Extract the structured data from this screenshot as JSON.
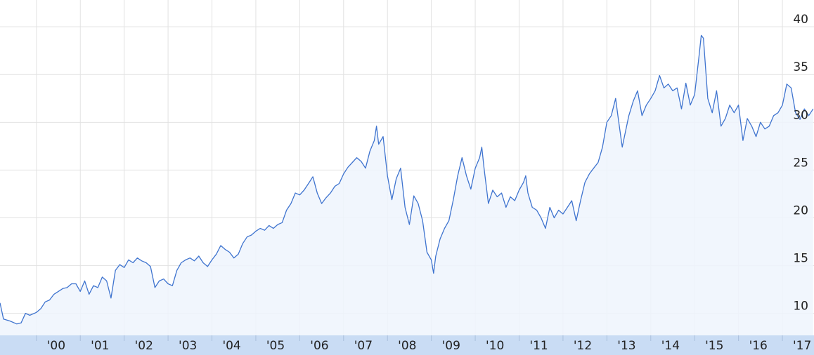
{
  "chart_data": {
    "type": "area",
    "color": "#3f74cf",
    "area_color": "#eef5fd",
    "grid": true,
    "xlim": [
      1999.17,
      2017.72
    ],
    "ylim": [
      7.7,
      42.8
    ],
    "yticks": [
      10,
      15,
      20,
      25,
      30,
      35,
      40
    ],
    "xticks": [
      {
        "value": 2000,
        "label": "'00"
      },
      {
        "value": 2001,
        "label": "'01"
      },
      {
        "value": 2002,
        "label": "'02"
      },
      {
        "value": 2003,
        "label": "'03"
      },
      {
        "value": 2004,
        "label": "'04"
      },
      {
        "value": 2005,
        "label": "'05"
      },
      {
        "value": 2006,
        "label": "'06"
      },
      {
        "value": 2007,
        "label": "'07"
      },
      {
        "value": 2008,
        "label": "'08"
      },
      {
        "value": 2009,
        "label": "'09"
      },
      {
        "value": 2010,
        "label": "'10"
      },
      {
        "value": 2011,
        "label": "'11"
      },
      {
        "value": 2012,
        "label": "'12"
      },
      {
        "value": 2013,
        "label": "'13"
      },
      {
        "value": 2014,
        "label": "'14"
      },
      {
        "value": 2015,
        "label": "'15"
      },
      {
        "value": 2016,
        "label": "'16"
      },
      {
        "value": 2017,
        "label": "'17"
      }
    ],
    "x": [
      1999.17,
      1999.25,
      1999.4,
      1999.55,
      1999.65,
      1999.75,
      1999.85,
      2000.0,
      2000.1,
      2000.2,
      2000.3,
      2000.4,
      2000.5,
      2000.6,
      2000.7,
      2000.8,
      2000.9,
      2001.0,
      2001.1,
      2001.2,
      2001.3,
      2001.4,
      2001.5,
      2001.6,
      2001.7,
      2001.8,
      2001.9,
      2002.0,
      2002.1,
      2002.2,
      2002.3,
      2002.4,
      2002.5,
      2002.6,
      2002.7,
      2002.8,
      2002.9,
      2003.0,
      2003.1,
      2003.2,
      2003.3,
      2003.4,
      2003.5,
      2003.6,
      2003.7,
      2003.8,
      2003.9,
      2004.0,
      2004.1,
      2004.2,
      2004.3,
      2004.4,
      2004.5,
      2004.6,
      2004.7,
      2004.8,
      2004.9,
      2005.0,
      2005.1,
      2005.2,
      2005.3,
      2005.4,
      2005.5,
      2005.6,
      2005.7,
      2005.8,
      2005.9,
      2006.0,
      2006.1,
      2006.2,
      2006.3,
      2006.4,
      2006.5,
      2006.6,
      2006.7,
      2006.8,
      2006.9,
      2007.0,
      2007.1,
      2007.2,
      2007.3,
      2007.4,
      2007.5,
      2007.6,
      2007.7,
      2007.75,
      2007.8,
      2007.9,
      2008.0,
      2008.1,
      2008.2,
      2008.3,
      2008.4,
      2008.5,
      2008.6,
      2008.7,
      2008.8,
      2008.9,
      2009.0,
      2009.05,
      2009.1,
      2009.2,
      2009.3,
      2009.4,
      2009.5,
      2009.6,
      2009.7,
      2009.8,
      2009.9,
      2010.0,
      2010.1,
      2010.15,
      2010.2,
      2010.3,
      2010.4,
      2010.5,
      2010.6,
      2010.7,
      2010.8,
      2010.9,
      2011.0,
      2011.1,
      2011.15,
      2011.2,
      2011.3,
      2011.4,
      2011.5,
      2011.6,
      2011.7,
      2011.8,
      2011.9,
      2012.0,
      2012.1,
      2012.2,
      2012.3,
      2012.4,
      2012.5,
      2012.6,
      2012.7,
      2012.8,
      2012.9,
      2013.0,
      2013.1,
      2013.2,
      2013.25,
      2013.35,
      2013.4,
      2013.5,
      2013.6,
      2013.7,
      2013.8,
      2013.9,
      2014.0,
      2014.1,
      2014.2,
      2014.3,
      2014.4,
      2014.5,
      2014.6,
      2014.7,
      2014.8,
      2014.9,
      2015.0,
      2015.1,
      2015.15,
      2015.2,
      2015.3,
      2015.4,
      2015.5,
      2015.6,
      2015.7,
      2015.8,
      2015.9,
      2016.0,
      2016.1,
      2016.2,
      2016.3,
      2016.4,
      2016.5,
      2016.6,
      2016.7,
      2016.8,
      2016.9,
      2017.0,
      2017.1,
      2017.2,
      2017.3,
      2017.4,
      2017.5,
      2017.6,
      2017.7
    ],
    "values": [
      11.1,
      9.4,
      9.2,
      8.9,
      9.0,
      10.0,
      9.8,
      10.1,
      10.5,
      11.2,
      11.4,
      12.0,
      12.3,
      12.6,
      12.7,
      13.1,
      13.1,
      12.3,
      13.4,
      12.0,
      12.9,
      12.7,
      13.8,
      13.4,
      11.6,
      14.5,
      15.1,
      14.8,
      15.6,
      15.3,
      15.8,
      15.5,
      15.3,
      14.9,
      12.7,
      13.4,
      13.6,
      13.1,
      12.9,
      14.5,
      15.3,
      15.6,
      15.8,
      15.5,
      16.0,
      15.3,
      14.9,
      15.6,
      16.2,
      17.1,
      16.7,
      16.4,
      15.8,
      16.2,
      17.3,
      18.0,
      18.2,
      18.6,
      18.9,
      18.7,
      19.2,
      18.9,
      19.3,
      19.5,
      20.8,
      21.5,
      22.6,
      22.4,
      22.9,
      23.6,
      24.3,
      22.6,
      21.5,
      22.1,
      22.6,
      23.3,
      23.6,
      24.6,
      25.3,
      25.8,
      26.3,
      25.9,
      25.2,
      27.0,
      28.1,
      29.6,
      27.7,
      28.5,
      24.4,
      21.9,
      24.1,
      25.2,
      21.1,
      19.3,
      22.3,
      21.5,
      19.7,
      16.4,
      15.6,
      14.2,
      16.0,
      17.8,
      18.9,
      19.7,
      21.9,
      24.4,
      26.3,
      24.4,
      23.0,
      25.2,
      26.3,
      27.4,
      25.2,
      21.5,
      22.9,
      22.2,
      22.6,
      21.1,
      22.2,
      21.8,
      22.9,
      23.7,
      24.4,
      22.6,
      21.1,
      20.8,
      20.0,
      18.9,
      21.1,
      20.0,
      20.8,
      20.4,
      21.1,
      21.8,
      19.7,
      21.8,
      23.7,
      24.6,
      25.2,
      25.8,
      27.4,
      30.0,
      30.7,
      32.5,
      30.7,
      27.4,
      28.5,
      30.7,
      32.2,
      33.3,
      30.7,
      31.8,
      32.5,
      33.3,
      34.9,
      33.6,
      34.0,
      33.3,
      33.6,
      31.4,
      34.1,
      31.8,
      32.9,
      36.9,
      39.1,
      38.8,
      32.5,
      31.0,
      33.3,
      29.6,
      30.4,
      31.8,
      31.0,
      31.8,
      28.1,
      30.4,
      29.6,
      28.5,
      30.0,
      29.3,
      29.6,
      30.7,
      31.0,
      31.8,
      34.0,
      33.6,
      31.0,
      30.3,
      31.4,
      30.7,
      31.4
    ]
  }
}
